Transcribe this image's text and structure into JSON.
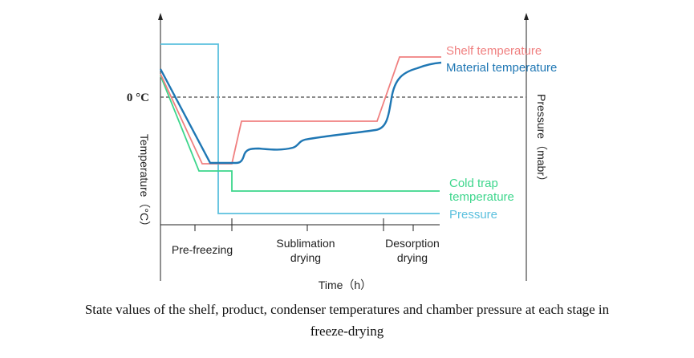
{
  "caption": {
    "line1": "State values of the shelf, product, condenser temperatures and chamber pressure at each stage in",
    "line2": "freeze-drying"
  },
  "chart_data": {
    "type": "line",
    "title": "",
    "xlabel": "Time（h）",
    "ylabel": "Temperature（°C）",
    "y2label": "Pressure（mabr）",
    "zero_label": "0 °C",
    "stages": [
      "Pre-freezing",
      "Sublimation drying",
      "Desorption drying"
    ],
    "stage_lines": [
      [
        "Pre-freezing"
      ],
      [
        "Sublimation",
        "drying"
      ],
      [
        "Desorption",
        "drying"
      ]
    ],
    "colors": {
      "shelf": "#f08080",
      "material": "#1f77b4",
      "cold_trap": "#3dd68c",
      "pressure": "#5bc0de",
      "zero_line": "#666666"
    },
    "series": [
      {
        "name": "Shelf temperature",
        "label_lines": [
          "Shelf temperature"
        ]
      },
      {
        "name": "Material temperature",
        "label_lines": [
          "Material temperature"
        ]
      },
      {
        "name": "Cold trap temperature",
        "label_lines": [
          "Cold trap",
          "temperature"
        ]
      },
      {
        "name": "Pressure",
        "label_lines": [
          "Pressure"
        ]
      }
    ]
  }
}
